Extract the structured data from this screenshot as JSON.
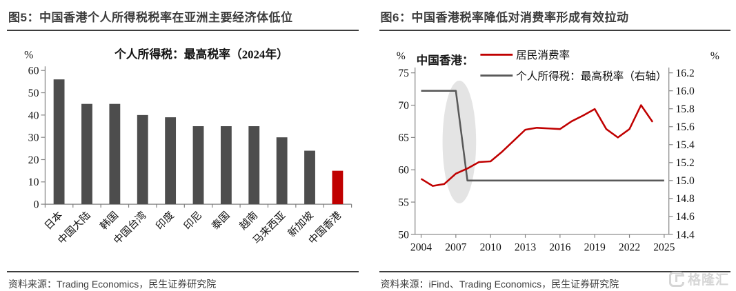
{
  "left_panel": {
    "title": "图5：中国香港个人所得税税率在亚洲主要经济体低位",
    "source": "资料来源：Trading Economics，民生证券研究院"
  },
  "right_panel": {
    "title": "图6：中国香港税率降低对消费率形成有效拉动",
    "source": "资料来源：iFind、Trading Economics，民生证券研究院"
  },
  "watermark": {
    "text": "格隆汇",
    "logo": "gelonghui-g-icon",
    "color": "#d6d6d6"
  },
  "colors": {
    "accent_red": "#C00000",
    "bar_gray": "#4D4D4D",
    "line_gray": "#595959",
    "axis_gray": "#808080"
  },
  "chart_data": [
    {
      "type": "bar",
      "title": "个人所得税：最高税率（2024年）",
      "ylabel": "%",
      "categories": [
        "日本",
        "中国大陆",
        "韩国",
        "中国台湾",
        "印度",
        "印尼",
        "泰国",
        "越南",
        "马来西亚",
        "新加坡",
        "中国香港"
      ],
      "values": [
        56,
        45,
        45,
        40,
        39,
        35,
        35,
        35,
        30,
        24,
        15
      ],
      "highlight_category": "中国香港",
      "bar_color": "#4D4D4D",
      "highlight_color": "#C00000",
      "ylim": [
        0,
        60
      ],
      "ytick_step": 10,
      "grid": false,
      "legend_position": "none"
    },
    {
      "type": "line",
      "title_prefix": "中国香港：",
      "left_unit": "%",
      "right_unit": "%",
      "x": [
        2004,
        2005,
        2006,
        2007,
        2008,
        2009,
        2010,
        2011,
        2012,
        2013,
        2014,
        2015,
        2016,
        2017,
        2018,
        2019,
        2020,
        2021,
        2022,
        2023,
        2024,
        2025
      ],
      "series": [
        {
          "name": "居民消费率",
          "axis": "left",
          "color": "#C00000",
          "values": [
            58.6,
            57.5,
            57.8,
            59.4,
            60.2,
            61.2,
            61.3,
            62.8,
            64.5,
            66.2,
            66.5,
            66.4,
            66.3,
            67.5,
            68.4,
            69.4,
            66.3,
            65.0,
            66.3,
            70.0,
            67.4,
            null
          ]
        },
        {
          "name": "个人所得税：最高税率（右轴）",
          "axis": "right",
          "color": "#595959",
          "values": [
            16.0,
            16.0,
            16.0,
            16.0,
            15.0,
            15.0,
            15.0,
            15.0,
            15.0,
            15.0,
            15.0,
            15.0,
            15.0,
            15.0,
            15.0,
            15.0,
            15.0,
            15.0,
            15.0,
            15.0,
            15.0,
            15.0
          ]
        }
      ],
      "left_ylim": [
        50,
        75
      ],
      "left_ytick_step": 5,
      "right_ylim": [
        14.4,
        16.2
      ],
      "right_ytick_step": 0.2,
      "xticks": [
        2004,
        2007,
        2010,
        2013,
        2016,
        2019,
        2022,
        2025
      ],
      "legend_position": "top",
      "grid": false,
      "highlight_ellipse": {
        "x_center": 2007.3,
        "y_center": 64.3,
        "x_radius": 1.45,
        "y_radius": 9.5,
        "color": "#DBDBDB",
        "opacity": 0.75
      }
    }
  ]
}
